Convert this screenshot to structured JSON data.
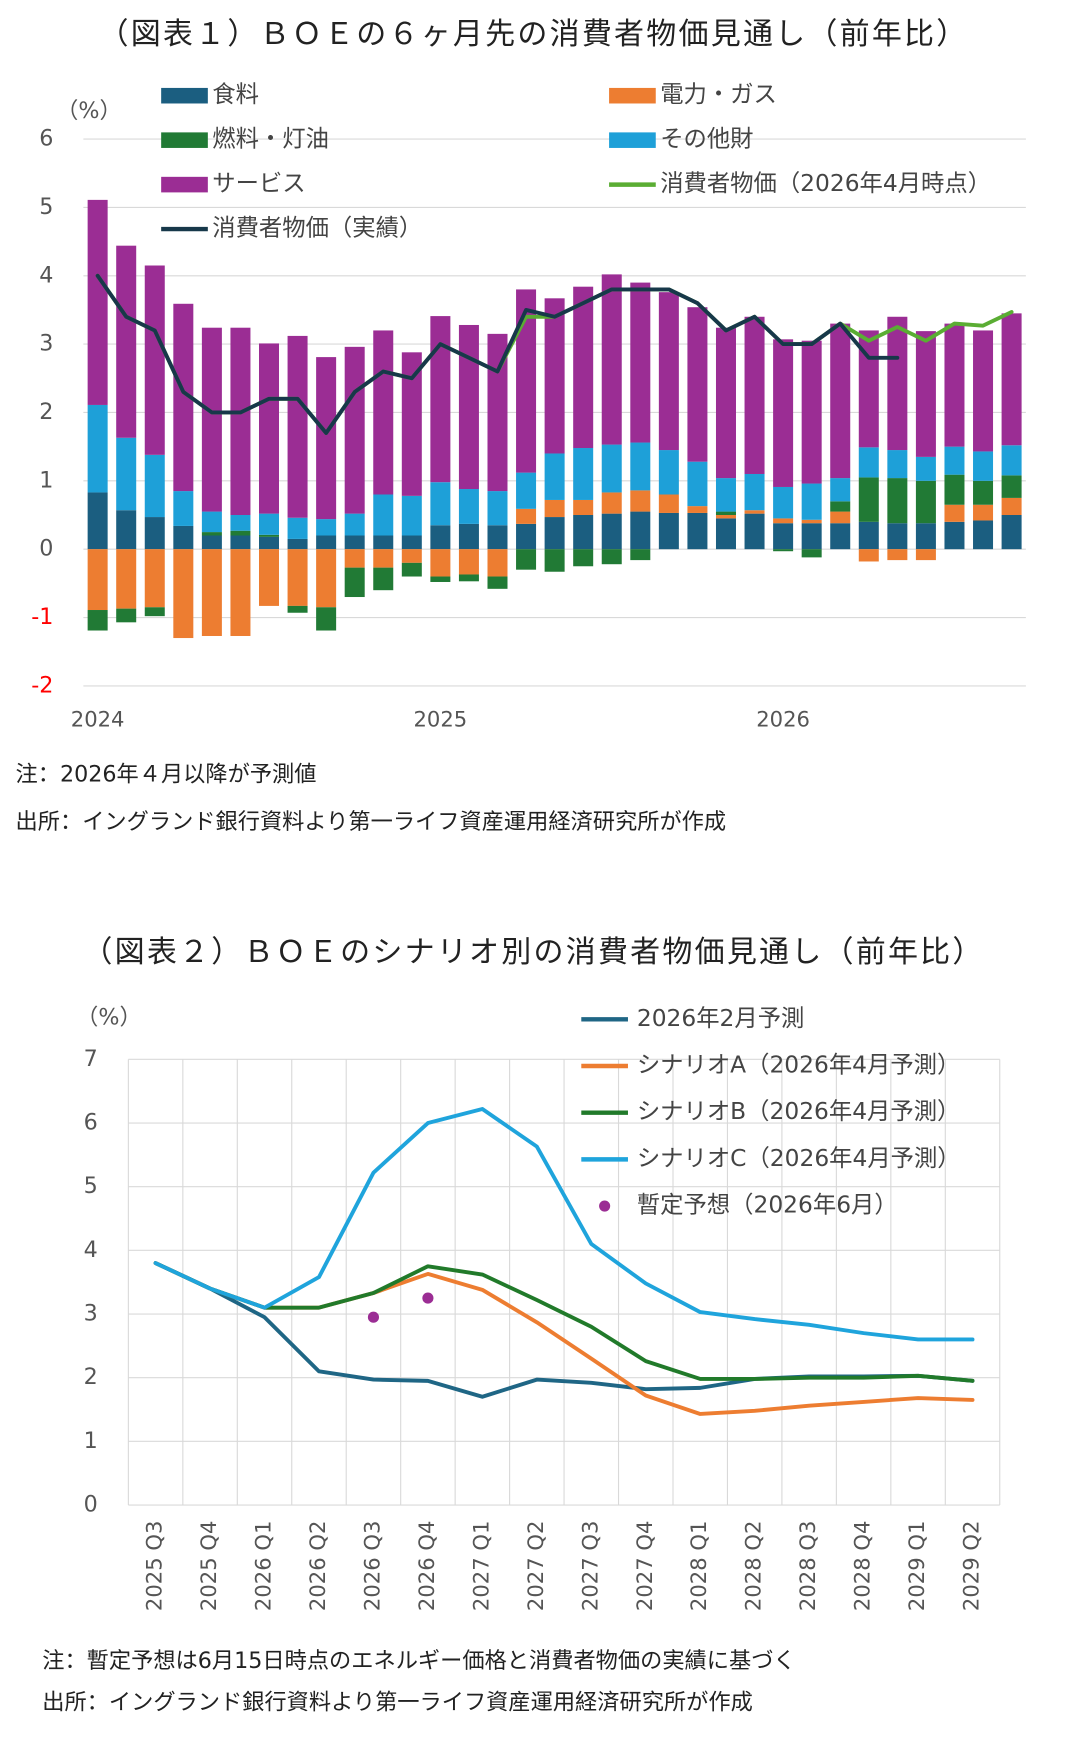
{
  "chart_data": [
    {
      "type": "stacked_bar",
      "title": "（図表１）ＢＯＥの６ヶ月先の消費者物価見通し（前年比）",
      "y_label": "（%）",
      "categories": [
        "2024",
        null,
        null,
        null,
        null,
        null,
        null,
        null,
        null,
        null,
        null,
        null,
        "2025",
        null,
        null,
        null,
        null,
        null,
        null,
        null,
        null,
        null,
        null,
        null,
        "2026",
        null,
        null,
        null,
        null,
        null,
        null,
        null,
        null
      ],
      "series": [
        {
          "name": "食料",
          "type": "bar",
          "color": "#1b5e80",
          "values": [
            0.83,
            0.57,
            0.47,
            0.34,
            0.2,
            0.2,
            0.18,
            0.15,
            0.2,
            0.2,
            0.2,
            0.2,
            0.35,
            0.37,
            0.35,
            0.37,
            0.47,
            0.5,
            0.52,
            0.55,
            0.53,
            0.53,
            0.45,
            0.52,
            0.38,
            0.38,
            0.38,
            0.4,
            0.38,
            0.38,
            0.4,
            0.42,
            0.5
          ]
        },
        {
          "name": "電力・ガス",
          "type": "bar",
          "color": "#ed7d31",
          "values": [
            -0.89,
            -0.87,
            -0.85,
            -1.3,
            -1.27,
            -1.27,
            -0.83,
            -0.83,
            -0.85,
            -0.27,
            -0.27,
            -0.2,
            -0.4,
            -0.37,
            -0.4,
            0.22,
            0.25,
            0.22,
            0.31,
            0.31,
            0.27,
            0.1,
            0.05,
            0.05,
            0.07,
            0.05,
            0.17,
            -0.18,
            -0.16,
            -0.16,
            0.25,
            0.23,
            0.25
          ]
        },
        {
          "name": "燃料・灯油",
          "type": "bar",
          "color": "#217a35",
          "values": [
            -0.3,
            -0.2,
            -0.13,
            0,
            0.05,
            0.07,
            0.03,
            -0.1,
            -0.34,
            -0.43,
            -0.33,
            -0.2,
            -0.08,
            -0.1,
            -0.18,
            -0.3,
            -0.33,
            -0.25,
            -0.22,
            -0.16,
            0,
            0,
            0.05,
            0,
            -0.03,
            -0.12,
            0.15,
            0.65,
            0.66,
            0.62,
            0.44,
            0.35,
            0.33
          ]
        },
        {
          "name": "その他財",
          "type": "bar",
          "color": "#1ea0d8",
          "values": [
            1.28,
            1.06,
            0.91,
            0.51,
            0.3,
            0.23,
            0.31,
            0.31,
            0.24,
            0.32,
            0.6,
            0.58,
            0.63,
            0.51,
            0.5,
            0.53,
            0.68,
            0.76,
            0.7,
            0.7,
            0.65,
            0.65,
            0.49,
            0.53,
            0.46,
            0.53,
            0.34,
            0.44,
            0.41,
            0.35,
            0.41,
            0.43,
            0.44
          ]
        },
        {
          "name": "サービス",
          "type": "bar",
          "color": "#9b2d94",
          "values": [
            3.0,
            2.81,
            2.77,
            2.74,
            2.69,
            2.74,
            2.49,
            2.66,
            2.37,
            2.44,
            2.4,
            2.1,
            2.43,
            2.4,
            2.3,
            2.68,
            2.27,
            2.36,
            2.49,
            2.34,
            2.31,
            2.26,
            2.2,
            2.3,
            2.16,
            2.09,
            2.26,
            1.71,
            1.95,
            1.84,
            1.8,
            1.77,
            1.93
          ]
        },
        {
          "name": "消費者物価（2026年4月時点）",
          "type": "line",
          "color": "#5aad33",
          "values": [
            4.0,
            3.4,
            3.2,
            2.3,
            2.0,
            2.0,
            2.2,
            2.2,
            1.7,
            2.3,
            2.6,
            2.5,
            3.0,
            2.8,
            2.6,
            3.4,
            3.4,
            3.6,
            3.8,
            3.8,
            3.8,
            3.6,
            3.2,
            3.4,
            3.0,
            3.0,
            3.3,
            3.05,
            3.25,
            3.05,
            3.3,
            3.27,
            3.47
          ]
        },
        {
          "name": "消費者物価（実績）",
          "type": "line",
          "color": "#17384a",
          "values": [
            4.0,
            3.4,
            3.2,
            2.3,
            2.0,
            2.0,
            2.2,
            2.2,
            1.7,
            2.3,
            2.6,
            2.5,
            3.0,
            2.8,
            2.6,
            3.5,
            3.4,
            3.6,
            3.8,
            3.8,
            3.8,
            3.6,
            3.2,
            3.4,
            3.0,
            3.0,
            3.3,
            2.8,
            2.8,
            null,
            null,
            null,
            null
          ]
        }
      ],
      "ylim": [
        -2,
        6
      ],
      "yticks": [
        -2,
        -1,
        0,
        1,
        2,
        3,
        4,
        5,
        6
      ],
      "grid": true,
      "negative_tick_color": "#ff0000",
      "notes": [
        "注：2026年４月以降が予測値",
        "出所：イングランド銀行資料より第一ライフ資産運用経済研究所が作成"
      ]
    },
    {
      "type": "line",
      "title": "（図表２）ＢＯＥのシナリオ別の消費者物価見通し（前年比）",
      "y_label": "（%）",
      "categories": [
        "2025 Q3",
        "2025 Q4",
        "2026 Q1",
        "2026 Q2",
        "2026 Q3",
        "2026 Q4",
        "2027 Q1",
        "2027 Q2",
        "2027 Q3",
        "2027 Q4",
        "2028 Q1",
        "2028 Q2",
        "2028 Q3",
        "2028 Q4",
        "2029 Q1",
        "2029 Q2"
      ],
      "series": [
        {
          "name": "2026年2月予測",
          "type": "line",
          "color": "#1f6685",
          "values": [
            3.8,
            3.4,
            2.95,
            2.1,
            1.97,
            1.95,
            1.7,
            1.97,
            1.92,
            1.82,
            1.84,
            1.98,
            2.02,
            2.02,
            2.03,
            1.95
          ]
        },
        {
          "name": "シナリオA（2026年4月予測）",
          "type": "line",
          "color": "#ed7d31",
          "values": [
            3.8,
            3.4,
            3.1,
            3.1,
            3.33,
            3.63,
            3.38,
            2.87,
            2.3,
            1.72,
            1.43,
            1.48,
            1.56,
            1.62,
            1.68,
            1.65
          ]
        },
        {
          "name": "シナリオB（2026年4月予測）",
          "type": "line",
          "color": "#217a2a",
          "values": [
            3.8,
            3.4,
            3.1,
            3.1,
            3.33,
            3.75,
            3.62,
            3.22,
            2.8,
            2.26,
            1.98,
            1.98,
            2.0,
            2.0,
            2.03,
            1.95
          ]
        },
        {
          "name": "シナリオC（2026年4月予測）",
          "type": "line",
          "color": "#1fa4dc",
          "values": [
            3.8,
            3.4,
            3.1,
            3.58,
            5.22,
            6.0,
            6.22,
            5.63,
            4.1,
            3.48,
            3.03,
            2.92,
            2.83,
            2.7,
            2.6,
            2.6
          ]
        },
        {
          "name": "暫定予想（2026年6月）",
          "type": "scatter",
          "color": "#9b2d94",
          "values": [
            null,
            null,
            null,
            null,
            2.95,
            3.25,
            null,
            null,
            null,
            null,
            null,
            null,
            null,
            null,
            null,
            null
          ]
        }
      ],
      "ylim": [
        0,
        7
      ],
      "yticks": [
        0,
        1,
        2,
        3,
        4,
        5,
        6,
        7
      ],
      "grid": true,
      "notes": [
        "注：暫定予想は6月15日時点のエネルギー価格と消費者物価の実績に基づく",
        "出所：イングランド銀行資料より第一ライフ資産運用経済研究所が作成"
      ]
    }
  ]
}
